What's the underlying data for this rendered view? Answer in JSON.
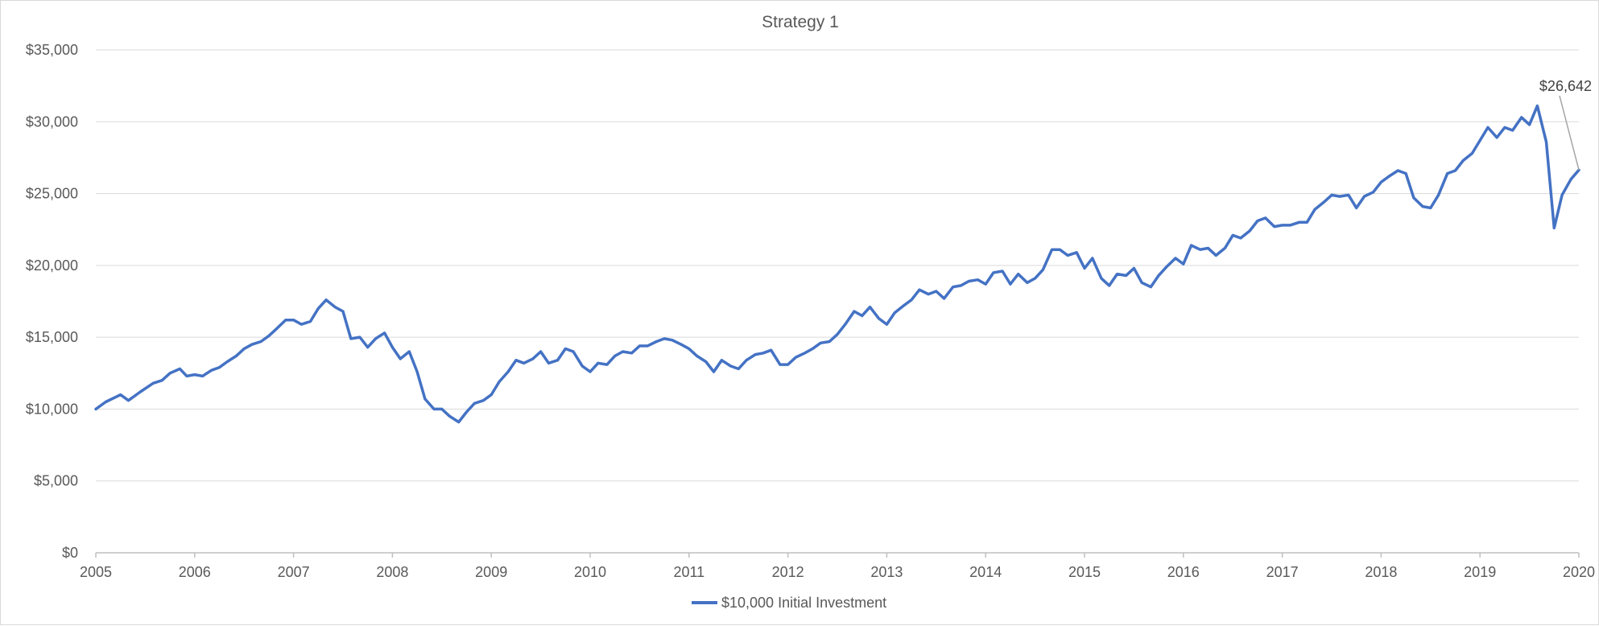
{
  "chart_data": {
    "type": "line",
    "title": "Strategy 1",
    "xlabel": "",
    "ylabel": "",
    "xlim": [
      2005,
      2020
    ],
    "ylim": [
      0,
      35000
    ],
    "grid": "horizontal",
    "legend_position": "bottom",
    "x_ticks": [
      "2005",
      "2006",
      "2007",
      "2008",
      "2009",
      "2010",
      "2011",
      "2012",
      "2013",
      "2014",
      "2015",
      "2016",
      "2017",
      "2018",
      "2019",
      "2020"
    ],
    "y_ticks": [
      {
        "value": 0,
        "label": "$0"
      },
      {
        "value": 5000,
        "label": "$5,000"
      },
      {
        "value": 10000,
        "label": "$10,000"
      },
      {
        "value": 15000,
        "label": "$15,000"
      },
      {
        "value": 20000,
        "label": "$20,000"
      },
      {
        "value": 25000,
        "label": "$25,000"
      },
      {
        "value": 30000,
        "label": "$30,000"
      },
      {
        "value": 35000,
        "label": "$35,000"
      }
    ],
    "series": [
      {
        "name": "$10,000 Initial Investment",
        "color": "#4472c4",
        "points": [
          [
            2005.0,
            10000
          ],
          [
            2005.1,
            10500
          ],
          [
            2005.25,
            11000
          ],
          [
            2005.33,
            10600
          ],
          [
            2005.45,
            11200
          ],
          [
            2005.58,
            11800
          ],
          [
            2005.67,
            12000
          ],
          [
            2005.75,
            12500
          ],
          [
            2005.85,
            12800
          ],
          [
            2005.92,
            12300
          ],
          [
            2006.0,
            12400
          ],
          [
            2006.08,
            12300
          ],
          [
            2006.17,
            12700
          ],
          [
            2006.25,
            12900
          ],
          [
            2006.33,
            13300
          ],
          [
            2006.42,
            13700
          ],
          [
            2006.5,
            14200
          ],
          [
            2006.58,
            14500
          ],
          [
            2006.67,
            14700
          ],
          [
            2006.75,
            15100
          ],
          [
            2006.83,
            15600
          ],
          [
            2006.92,
            16200
          ],
          [
            2007.0,
            16200
          ],
          [
            2007.08,
            15900
          ],
          [
            2007.17,
            16100
          ],
          [
            2007.25,
            17000
          ],
          [
            2007.33,
            17600
          ],
          [
            2007.42,
            17100
          ],
          [
            2007.5,
            16800
          ],
          [
            2007.58,
            14900
          ],
          [
            2007.67,
            15000
          ],
          [
            2007.75,
            14300
          ],
          [
            2007.83,
            14900
          ],
          [
            2007.92,
            15300
          ],
          [
            2008.0,
            14300
          ],
          [
            2008.08,
            13500
          ],
          [
            2008.17,
            14000
          ],
          [
            2008.25,
            12600
          ],
          [
            2008.33,
            10700
          ],
          [
            2008.42,
            10000
          ],
          [
            2008.5,
            10000
          ],
          [
            2008.58,
            9500
          ],
          [
            2008.67,
            9100
          ],
          [
            2008.75,
            9800
          ],
          [
            2008.83,
            10400
          ],
          [
            2008.92,
            10600
          ],
          [
            2009.0,
            11000
          ],
          [
            2009.08,
            11900
          ],
          [
            2009.17,
            12600
          ],
          [
            2009.25,
            13400
          ],
          [
            2009.33,
            13200
          ],
          [
            2009.42,
            13500
          ],
          [
            2009.5,
            14000
          ],
          [
            2009.58,
            13200
          ],
          [
            2009.67,
            13400
          ],
          [
            2009.75,
            14200
          ],
          [
            2009.83,
            14000
          ],
          [
            2009.92,
            13000
          ],
          [
            2010.0,
            12600
          ],
          [
            2010.08,
            13200
          ],
          [
            2010.17,
            13100
          ],
          [
            2010.25,
            13700
          ],
          [
            2010.33,
            14000
          ],
          [
            2010.42,
            13900
          ],
          [
            2010.5,
            14400
          ],
          [
            2010.58,
            14400
          ],
          [
            2010.67,
            14700
          ],
          [
            2010.75,
            14900
          ],
          [
            2010.83,
            14800
          ],
          [
            2010.92,
            14500
          ],
          [
            2011.0,
            14200
          ],
          [
            2011.08,
            13700
          ],
          [
            2011.17,
            13300
          ],
          [
            2011.25,
            12600
          ],
          [
            2011.33,
            13400
          ],
          [
            2011.42,
            13000
          ],
          [
            2011.5,
            12800
          ],
          [
            2011.58,
            13400
          ],
          [
            2011.67,
            13800
          ],
          [
            2011.75,
            13900
          ],
          [
            2011.83,
            14100
          ],
          [
            2011.92,
            13100
          ],
          [
            2012.0,
            13100
          ],
          [
            2012.08,
            13600
          ],
          [
            2012.17,
            13900
          ],
          [
            2012.25,
            14200
          ],
          [
            2012.33,
            14600
          ],
          [
            2012.42,
            14700
          ],
          [
            2012.5,
            15200
          ],
          [
            2012.58,
            15900
          ],
          [
            2012.67,
            16800
          ],
          [
            2012.75,
            16500
          ],
          [
            2012.83,
            17100
          ],
          [
            2012.92,
            16300
          ],
          [
            2013.0,
            15900
          ],
          [
            2013.08,
            16700
          ],
          [
            2013.17,
            17200
          ],
          [
            2013.25,
            17600
          ],
          [
            2013.33,
            18300
          ],
          [
            2013.42,
            18000
          ],
          [
            2013.5,
            18200
          ],
          [
            2013.58,
            17700
          ],
          [
            2013.67,
            18500
          ],
          [
            2013.75,
            18600
          ],
          [
            2013.83,
            18900
          ],
          [
            2013.92,
            19000
          ],
          [
            2014.0,
            18700
          ],
          [
            2014.08,
            19500
          ],
          [
            2014.17,
            19600
          ],
          [
            2014.25,
            18700
          ],
          [
            2014.33,
            19400
          ],
          [
            2014.42,
            18800
          ],
          [
            2014.5,
            19100
          ],
          [
            2014.58,
            19700
          ],
          [
            2014.67,
            21100
          ],
          [
            2014.75,
            21100
          ],
          [
            2014.83,
            20700
          ],
          [
            2014.92,
            20900
          ],
          [
            2015.0,
            19800
          ],
          [
            2015.08,
            20500
          ],
          [
            2015.17,
            19100
          ],
          [
            2015.25,
            18600
          ],
          [
            2015.33,
            19400
          ],
          [
            2015.42,
            19300
          ],
          [
            2015.5,
            19800
          ],
          [
            2015.58,
            18800
          ],
          [
            2015.67,
            18500
          ],
          [
            2015.75,
            19300
          ],
          [
            2015.83,
            19900
          ],
          [
            2015.92,
            20500
          ],
          [
            2016.0,
            20100
          ],
          [
            2016.08,
            21400
          ],
          [
            2016.17,
            21100
          ],
          [
            2016.25,
            21200
          ],
          [
            2016.33,
            20700
          ],
          [
            2016.42,
            21200
          ],
          [
            2016.5,
            22100
          ],
          [
            2016.58,
            21900
          ],
          [
            2016.67,
            22400
          ],
          [
            2016.75,
            23100
          ],
          [
            2016.83,
            23300
          ],
          [
            2016.92,
            22700
          ],
          [
            2017.0,
            22800
          ],
          [
            2017.08,
            22800
          ],
          [
            2017.17,
            23000
          ],
          [
            2017.25,
            23000
          ],
          [
            2017.33,
            23900
          ],
          [
            2017.42,
            24400
          ],
          [
            2017.5,
            24900
          ],
          [
            2017.58,
            24800
          ],
          [
            2017.67,
            24900
          ],
          [
            2017.75,
            24000
          ],
          [
            2017.83,
            24800
          ],
          [
            2017.92,
            25100
          ],
          [
            2018.0,
            25800
          ],
          [
            2018.08,
            26200
          ],
          [
            2018.17,
            26600
          ],
          [
            2018.25,
            26400
          ],
          [
            2018.33,
            24700
          ],
          [
            2018.42,
            24100
          ],
          [
            2018.5,
            24000
          ],
          [
            2018.58,
            24900
          ],
          [
            2018.67,
            26400
          ],
          [
            2018.75,
            26600
          ],
          [
            2018.83,
            27300
          ],
          [
            2018.92,
            27800
          ],
          [
            2019.0,
            28700
          ],
          [
            2019.08,
            29600
          ],
          [
            2019.17,
            28900
          ],
          [
            2019.25,
            29600
          ],
          [
            2019.33,
            29400
          ],
          [
            2019.42,
            30300
          ],
          [
            2019.5,
            29800
          ],
          [
            2019.58,
            31100
          ],
          [
            2019.67,
            28600
          ],
          [
            2019.75,
            22600
          ],
          [
            2019.83,
            24900
          ],
          [
            2019.92,
            26000
          ],
          [
            2020.0,
            26642
          ]
        ]
      }
    ],
    "annotations": [
      {
        "text": "$26,642",
        "x": 2020.0,
        "y": 26642
      }
    ]
  }
}
